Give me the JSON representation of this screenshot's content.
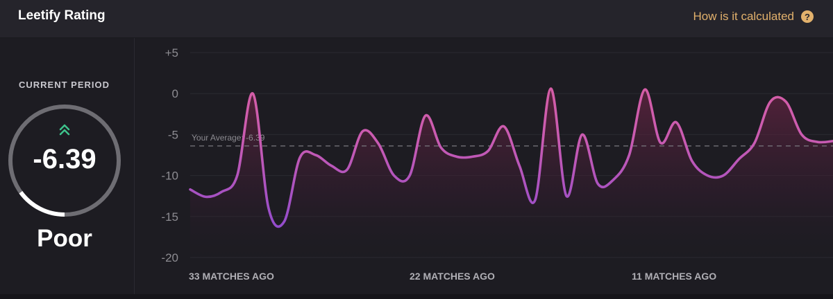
{
  "header": {
    "title": "Leetify Rating",
    "help_link": "How is it calculated",
    "help_icon": "question-circle-icon"
  },
  "current": {
    "period_label": "CURRENT PERIOD",
    "value": "-6.39",
    "rating_label": "Poor",
    "trend_icon": "double-chevron-up-icon",
    "trend_color": "#3ec28b",
    "gauge_fill_fraction": 0.15
  },
  "colors": {
    "line_low": "#8a47d6",
    "line_high": "#db5a9d",
    "help_link": "#e2b16c"
  },
  "chart_data": {
    "type": "line",
    "ylim": [
      -20,
      5
    ],
    "yticks": [
      "+5",
      "0",
      "-5",
      "-10",
      "-15",
      "-20"
    ],
    "ytick_values": [
      5,
      0,
      -5,
      -10,
      -15,
      -20
    ],
    "x_labels": [
      "33 MATCHES AGO",
      "22 MATCHES AGO",
      "11 MATCHES AGO"
    ],
    "average": {
      "label": "Your Average: -6.39",
      "value": -6.39
    },
    "grid": true,
    "series": [
      {
        "values": [
          -11.7,
          -12.6,
          -12.0,
          -10.0,
          0.0,
          -14.0,
          -15.6,
          -7.8,
          -7.5,
          -8.8,
          -9.3,
          -4.6,
          -6.1,
          -10.0,
          -10.0,
          -2.7,
          -6.6,
          -7.7,
          -7.7,
          -7.0,
          -4.0,
          -8.8,
          -13.0,
          0.6,
          -12.5,
          -5.0,
          -11.0,
          -10.5,
          -7.5,
          0.5,
          -6.0,
          -3.5,
          -8.2,
          -10.0,
          -10.0,
          -8.0,
          -6.0,
          -1.0,
          -1.0,
          -5.0,
          -5.9,
          -5.8
        ]
      }
    ]
  }
}
